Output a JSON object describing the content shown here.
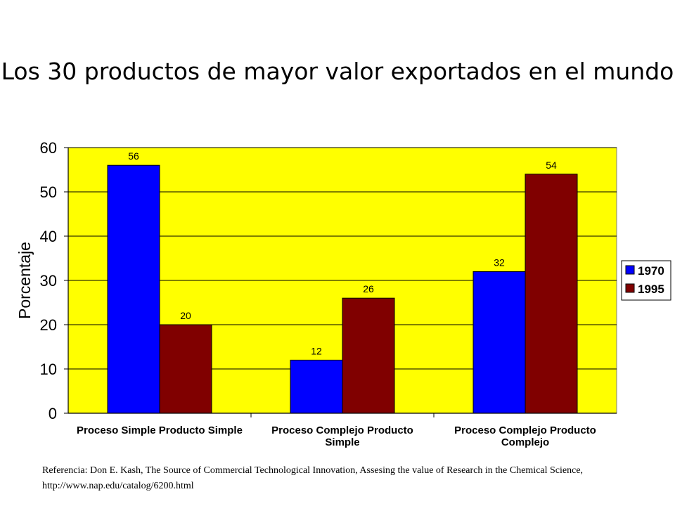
{
  "chart_data": {
    "type": "bar",
    "title": "Los 30 productos de mayor valor exportados en el mundo",
    "ylabel": "Porcentaje",
    "xlabel": "",
    "ylim": [
      0,
      60
    ],
    "yticks": [
      0,
      10,
      20,
      30,
      40,
      50,
      60
    ],
    "grid": true,
    "legend_position": "right",
    "plot_background": "#ffff00",
    "categories": [
      [
        "Proceso Simple Producto Simple"
      ],
      [
        "Proceso Complejo Producto",
        "Simple"
      ],
      [
        "Proceso Complejo Producto",
        "Complejo"
      ]
    ],
    "series": [
      {
        "name": "1970",
        "color": "#0000ff",
        "values": [
          56,
          12,
          32
        ]
      },
      {
        "name": "1995",
        "color": "#800000",
        "values": [
          20,
          26,
          54
        ]
      }
    ]
  },
  "reference": "Referencia: Don E. Kash, The Source of Commercial Technological Innovation, Assesing the value of Research in the Chemical Science, http://www.nap.edu/catalog/6200.html"
}
